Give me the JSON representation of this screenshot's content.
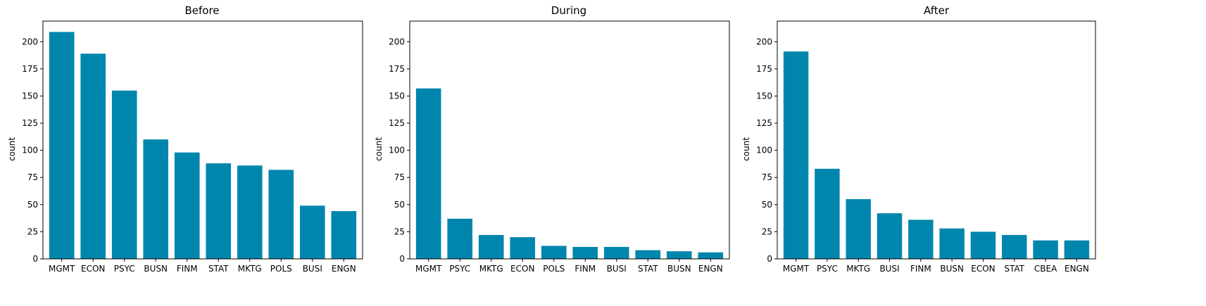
{
  "colors": {
    "bar": "#0086ad",
    "axis": "#000000",
    "background": "#ffffff"
  },
  "chart_data": [
    {
      "type": "bar",
      "title": "Before",
      "xlabel": "",
      "ylabel": "count",
      "ylim": [
        0,
        219
      ],
      "yticks": [
        0,
        25,
        50,
        75,
        100,
        125,
        150,
        175,
        200
      ],
      "categories": [
        "MGMT",
        "ECON",
        "PSYC",
        "BUSN",
        "FINM",
        "STAT",
        "MKTG",
        "POLS",
        "BUSI",
        "ENGN"
      ],
      "values": [
        209,
        189,
        155,
        110,
        98,
        88,
        86,
        82,
        49,
        44
      ]
    },
    {
      "type": "bar",
      "title": "During",
      "xlabel": "",
      "ylabel": "count",
      "ylim": [
        0,
        219
      ],
      "yticks": [
        0,
        25,
        50,
        75,
        100,
        125,
        150,
        175,
        200
      ],
      "categories": [
        "MGMT",
        "PSYC",
        "MKTG",
        "ECON",
        "POLS",
        "FINM",
        "BUSI",
        "STAT",
        "BUSN",
        "ENGN"
      ],
      "values": [
        157,
        37,
        22,
        20,
        12,
        11,
        11,
        8,
        7,
        6
      ]
    },
    {
      "type": "bar",
      "title": "After",
      "xlabel": "",
      "ylabel": "count",
      "ylim": [
        0,
        219
      ],
      "yticks": [
        0,
        25,
        50,
        75,
        100,
        125,
        150,
        175,
        200
      ],
      "categories": [
        "MGMT",
        "PSYC",
        "MKTG",
        "BUSI",
        "FINM",
        "BUSN",
        "ECON",
        "STAT",
        "CBEA",
        "ENGN"
      ],
      "values": [
        191,
        83,
        55,
        42,
        36,
        28,
        25,
        22,
        17,
        17
      ]
    }
  ]
}
